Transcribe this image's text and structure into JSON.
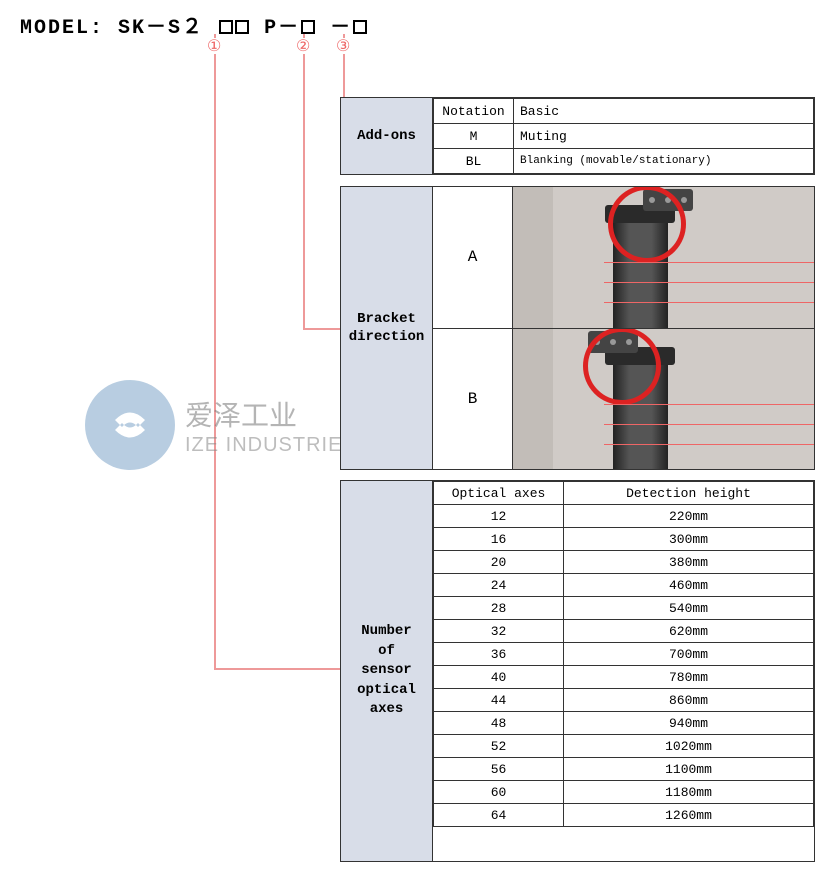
{
  "model_prefix": "MODEL: SK－S２",
  "model_mid": "P－",
  "model_sep": "－",
  "circled": {
    "one": "①",
    "two": "②",
    "three": "③"
  },
  "connector_color": "#e99",
  "addons": {
    "label": "Add-ons",
    "header_col1": "Notation",
    "header_col2": "Basic",
    "rows": [
      {
        "code": "M",
        "desc": "Muting"
      },
      {
        "code": "BL",
        "desc": "Blanking (movable/stationary)"
      }
    ]
  },
  "bracket": {
    "label": "Bracket\ndirection",
    "rows": [
      {
        "letter": "A",
        "variant": "a"
      },
      {
        "letter": "B",
        "variant": "b"
      }
    ],
    "ring_color": "#d22"
  },
  "axes": {
    "label": "Number\nof\nsensor\noptical\naxes",
    "header_col1": "Optical axes",
    "header_col2": "Detection height",
    "rows": [
      {
        "n": "12",
        "h": "220mm"
      },
      {
        "n": "16",
        "h": "300mm"
      },
      {
        "n": "20",
        "h": "380mm"
      },
      {
        "n": "24",
        "h": "460mm"
      },
      {
        "n": "28",
        "h": "540mm"
      },
      {
        "n": "32",
        "h": "620mm"
      },
      {
        "n": "36",
        "h": "700mm"
      },
      {
        "n": "40",
        "h": "780mm"
      },
      {
        "n": "44",
        "h": "860mm"
      },
      {
        "n": "48",
        "h": "940mm"
      },
      {
        "n": "52",
        "h": "1020mm"
      },
      {
        "n": "56",
        "h": "1100mm"
      },
      {
        "n": "60",
        "h": "1180mm"
      },
      {
        "n": "64",
        "h": "1260mm"
      }
    ]
  },
  "watermark": {
    "zh": "爱泽工业",
    "en": "IZE INDUSTRIES",
    "logo_color": "#7fa6c9"
  }
}
